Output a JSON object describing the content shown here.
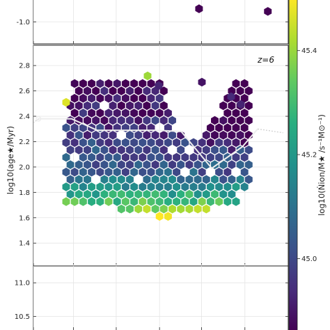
{
  "chart_data": [
    {
      "type": "heatmap",
      "panel": "top",
      "yticks": [
        "-1.0"
      ],
      "ylim": [
        -1.25,
        -0.75
      ],
      "hexbins": [
        {
          "x": 0.65,
          "y": -0.85,
          "c": 44.86
        },
        {
          "x": 0.92,
          "y": -0.88,
          "c": 44.86
        }
      ]
    },
    {
      "type": "heatmap",
      "panel": "middle",
      "label": "z=6",
      "ylabel": "log10(age★/Myr)",
      "yticks": [
        "1.4",
        "1.6",
        "1.8",
        "2.0",
        "2.2",
        "2.4",
        "2.6",
        "2.8"
      ],
      "ylim": [
        1.22,
        2.96
      ],
      "xlim": [
        0,
        1
      ],
      "grid": true,
      "median_line": {
        "x": [
          0.02,
          0.15,
          0.25,
          0.37,
          0.48,
          0.58,
          0.7,
          0.82,
          0.88
        ],
        "y": [
          2.38,
          2.38,
          2.29,
          2.29,
          2.29,
          2.28,
          1.99,
          2.16,
          2.3
        ],
        "dotted_ends": [
          [
            -0.07,
            2.24
          ],
          [
            0.98,
            2.27
          ]
        ]
      }
    },
    {
      "type": "heatmap",
      "panel": "bottom",
      "yticks": [
        "10.5",
        "11.0"
      ],
      "ylim": [
        10.3,
        11.25
      ]
    }
  ],
  "colorbar": {
    "label": "log10(Ṅion/M★ /s⁻¹M⊙⁻¹)",
    "ticks": [
      "45.0",
      "45.2",
      "45.4"
    ],
    "range": [
      44.86,
      45.5
    ],
    "colormap": [
      "#440154",
      "#472d7b",
      "#3b528b",
      "#2c728e",
      "#21918c",
      "#28ae80",
      "#5ec962",
      "#addc30",
      "#fde725"
    ]
  }
}
